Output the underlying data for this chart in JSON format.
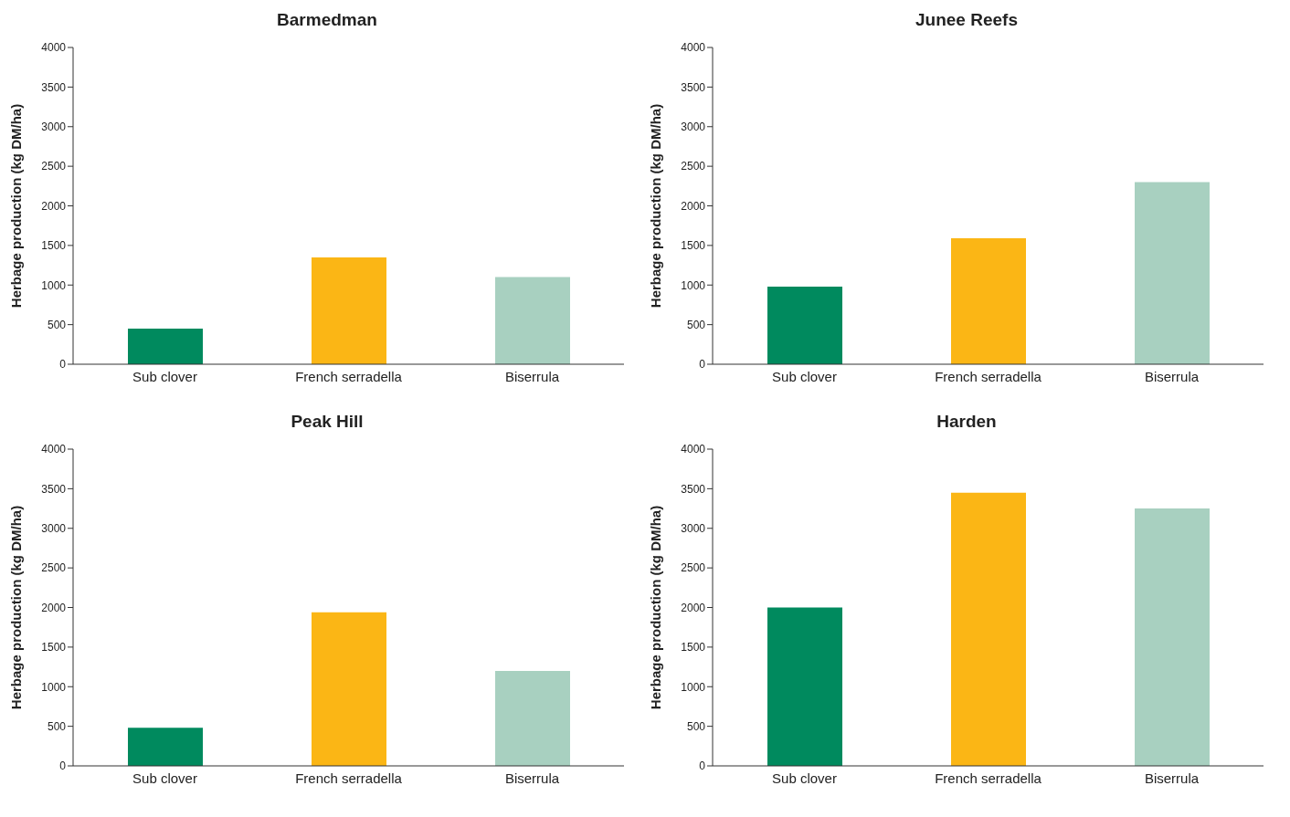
{
  "chart_data": [
    {
      "type": "bar",
      "title": "Barmedman",
      "ylabel": "Herbage production (kg DM/ha)",
      "categories": [
        "Sub clover",
        "French serradella",
        "Biserrula"
      ],
      "values": [
        450,
        1350,
        1100
      ],
      "colors": [
        "#008a5e",
        "#fbb615",
        "#a8d0c0"
      ],
      "ylim": [
        0,
        4000
      ],
      "yticks": [
        0,
        500,
        1000,
        1500,
        2000,
        2500,
        3000,
        3500,
        4000
      ]
    },
    {
      "type": "bar",
      "title": "Junee Reefs",
      "ylabel": "Herbage production (kg DM/ha)",
      "categories": [
        "Sub clover",
        "French serradella",
        "Biserrula"
      ],
      "values": [
        980,
        1590,
        2300
      ],
      "colors": [
        "#008a5e",
        "#fbb615",
        "#a8d0c0"
      ],
      "ylim": [
        0,
        4000
      ],
      "yticks": [
        0,
        500,
        1000,
        1500,
        2000,
        2500,
        3000,
        3500,
        4000
      ]
    },
    {
      "type": "bar",
      "title": "Peak Hill",
      "ylabel": "Herbage production (kg DM/ha)",
      "categories": [
        "Sub clover",
        "French serradella",
        "Biserrula"
      ],
      "values": [
        480,
        1940,
        1200
      ],
      "colors": [
        "#008a5e",
        "#fbb615",
        "#a8d0c0"
      ],
      "ylim": [
        0,
        4000
      ],
      "yticks": [
        0,
        500,
        1000,
        1500,
        2000,
        2500,
        3000,
        3500,
        4000
      ]
    },
    {
      "type": "bar",
      "title": "Harden",
      "ylabel": "Herbage production (kg DM/ha)",
      "categories": [
        "Sub clover",
        "French serradella",
        "Biserrula"
      ],
      "values": [
        2000,
        3450,
        3250
      ],
      "colors": [
        "#008a5e",
        "#fbb615",
        "#a8d0c0"
      ],
      "ylim": [
        0,
        4000
      ],
      "yticks": [
        0,
        500,
        1000,
        1500,
        2000,
        2500,
        3000,
        3500,
        4000
      ]
    }
  ]
}
